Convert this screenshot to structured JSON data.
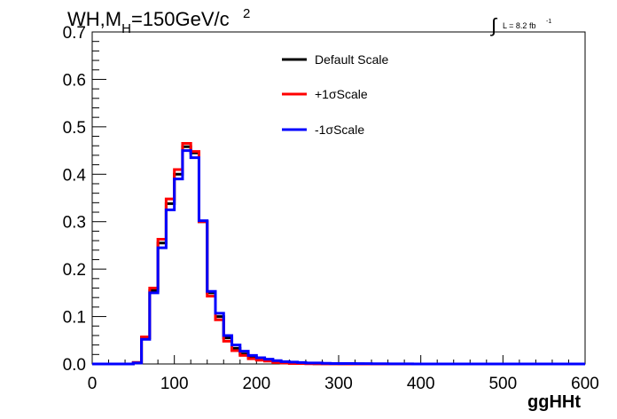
{
  "title": {
    "main": "WH,M",
    "sub": "H",
    "rest": "=150GeV/c",
    "sup": "2"
  },
  "lumi": {
    "integral_sign": "∫",
    "text": "L = 8.2 fb",
    "sup": "-1"
  },
  "chart_data": {
    "type": "line",
    "xlabel": "ggHHt",
    "ylabel": "",
    "xlim": [
      0,
      600
    ],
    "ylim": [
      0,
      0.7
    ],
    "x_ticks": [
      0,
      100,
      200,
      300,
      400,
      500,
      600
    ],
    "x_tick_labels": [
      "0",
      "100",
      "200",
      "300",
      "400",
      "500",
      "600"
    ],
    "y_ticks": [
      0.0,
      0.1,
      0.2,
      0.3,
      0.4,
      0.5,
      0.6,
      0.7
    ],
    "y_tick_labels": [
      "0.0",
      "0.1",
      "0.2",
      "0.3",
      "0.4",
      "0.5",
      "0.6",
      "0.7"
    ],
    "bin_edges": [
      0,
      10,
      20,
      30,
      40,
      50,
      60,
      70,
      80,
      90,
      100,
      110,
      120,
      130,
      140,
      150,
      160,
      170,
      180,
      190,
      200,
      210,
      220,
      230,
      240,
      250,
      260,
      270,
      280,
      290,
      300,
      310,
      320,
      330,
      340,
      350,
      360,
      370,
      380,
      390,
      400,
      410,
      420,
      430,
      440,
      450,
      460,
      470,
      480,
      490,
      500,
      510,
      520,
      530,
      540,
      550,
      560,
      570,
      580,
      590,
      600
    ],
    "series": [
      {
        "name": "Default Scale",
        "color": "#000000",
        "values": [
          0,
          0,
          0,
          0,
          0,
          0.003,
          0.055,
          0.155,
          0.255,
          0.338,
          0.4,
          0.458,
          0.445,
          0.3,
          0.15,
          0.1,
          0.055,
          0.033,
          0.021,
          0.014,
          0.01,
          0.007,
          0.004,
          0.003,
          0.002,
          0.001,
          0.001,
          0.0005,
          0.0005,
          0.0004,
          0.0003,
          0.0002,
          0.0002,
          0.0001,
          0.0001,
          0.0001,
          0.0001,
          0.0001,
          0,
          0,
          0,
          0,
          0,
          0,
          0,
          0,
          0,
          0,
          0,
          0,
          0,
          0,
          0,
          0,
          0,
          0,
          0,
          0,
          0,
          0
        ]
      },
      {
        "name": "+1σScale",
        "color": "#ff0000",
        "values": [
          0,
          0,
          0,
          0,
          0,
          0.003,
          0.057,
          0.16,
          0.263,
          0.348,
          0.41,
          0.465,
          0.448,
          0.3,
          0.143,
          0.093,
          0.048,
          0.028,
          0.018,
          0.011,
          0.008,
          0.006,
          0.003,
          0.002,
          0.001,
          0.001,
          0.0005,
          0.0004,
          0.0003,
          0.0003,
          0.0002,
          0.0001,
          0.0001,
          0.0001,
          0.0001,
          0.0001,
          0,
          0,
          0,
          0,
          0,
          0,
          0,
          0,
          0,
          0,
          0,
          0,
          0,
          0,
          0,
          0,
          0,
          0,
          0,
          0,
          0,
          0,
          0,
          0
        ]
      },
      {
        "name": "-1σScale",
        "color": "#0000ff",
        "values": [
          0,
          0,
          0,
          0,
          0,
          0.002,
          0.052,
          0.15,
          0.245,
          0.325,
          0.39,
          0.45,
          0.435,
          0.302,
          0.153,
          0.107,
          0.06,
          0.04,
          0.027,
          0.018,
          0.013,
          0.01,
          0.007,
          0.005,
          0.004,
          0.003,
          0.002,
          0.002,
          0.0015,
          0.001,
          0.001,
          0.001,
          0.0008,
          0.0006,
          0.0005,
          0.0004,
          0.0003,
          0.0002,
          0.0002,
          0.0001,
          0.0001,
          0.0001,
          0,
          0,
          0,
          0,
          0,
          0,
          0,
          0,
          0,
          0,
          0,
          0,
          0,
          0,
          0,
          0,
          0,
          0
        ]
      }
    ],
    "legend_placement": "top-center",
    "grid": false
  }
}
